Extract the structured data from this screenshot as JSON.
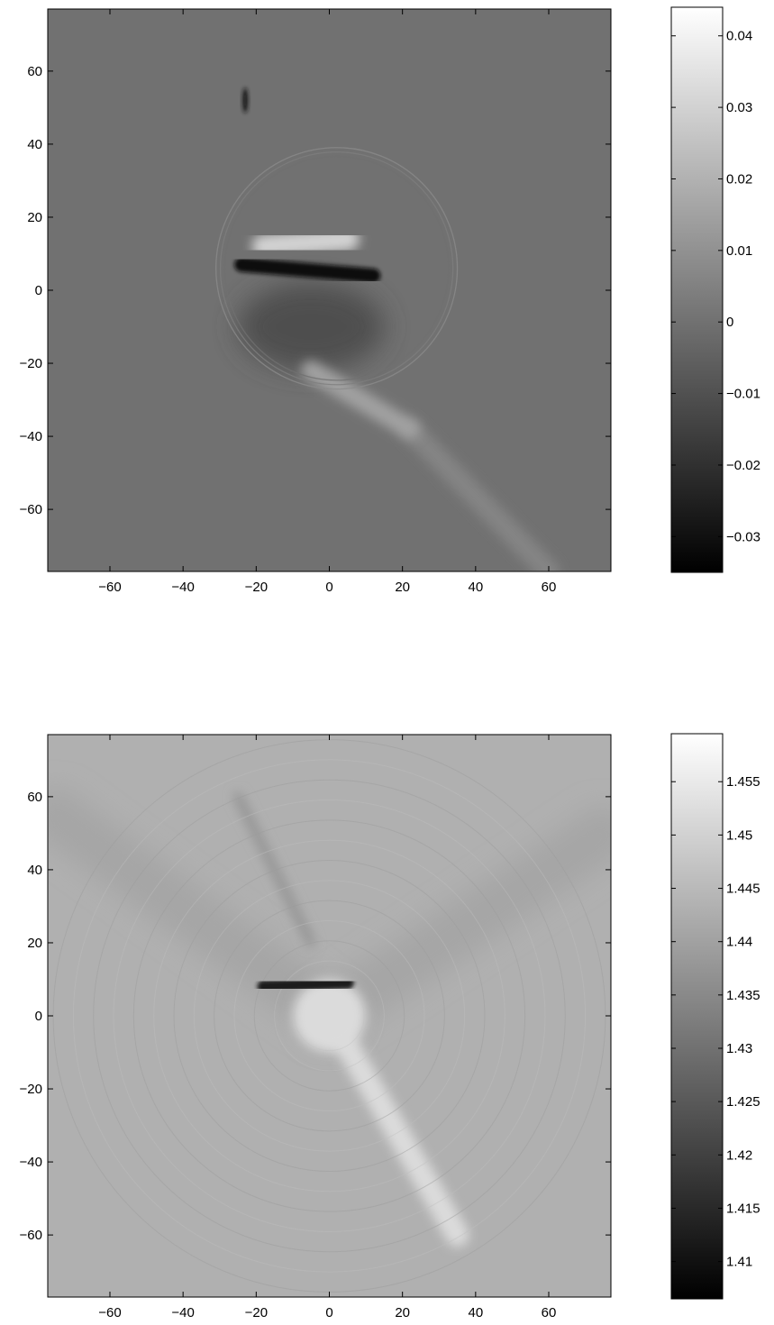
{
  "chart_data": [
    {
      "type": "heatmap",
      "title": "",
      "xlabel": "",
      "ylabel": "",
      "xlim": [
        -77,
        77
      ],
      "ylim": [
        -77,
        77
      ],
      "x_ticks": [
        -60,
        -40,
        -20,
        0,
        20,
        40,
        60
      ],
      "y_ticks": [
        -60,
        -40,
        -20,
        0,
        20,
        40,
        60
      ],
      "x_tick_labels": [
        "−60",
        "−40",
        "−20",
        "0",
        "20",
        "40",
        "60"
      ],
      "y_tick_labels": [
        "−60",
        "−40",
        "−20",
        "0",
        "20",
        "40",
        "60"
      ],
      "colormap": "gray",
      "background_value": 0,
      "colorbar": {
        "min": -0.035,
        "max": 0.044,
        "ticks": [
          -0.03,
          -0.02,
          -0.01,
          0,
          0.01,
          0.02,
          0.03,
          0.04
        ],
        "tick_labels": [
          "−0.03",
          "−0.02",
          "−0.01",
          "0",
          "0.01",
          "0.02",
          "0.03",
          "0.04"
        ]
      },
      "features": {
        "ring": {
          "cx": 2,
          "cy": 6,
          "r": 33,
          "value": 0.008
        },
        "bright_band": {
          "x1": -18,
          "y1": 12,
          "x2": 5,
          "y2": 14,
          "value": 0.03
        },
        "dark_band": {
          "x1": -24,
          "y1": 7,
          "x2": 12,
          "y2": 4,
          "value": -0.03
        },
        "dark_region": {
          "cx": -5,
          "cy": -10,
          "rx": 20,
          "ry": 12,
          "value": -0.012
        },
        "streak": {
          "x1": -5,
          "y1": -22,
          "x2": 22,
          "y2": -38,
          "value": 0.015
        },
        "tail": {
          "x1": 22,
          "y1": -38,
          "x2": 60,
          "y2": -77,
          "value": 0.006
        },
        "top_spot": {
          "x": -23,
          "y": 52,
          "value": -0.028
        }
      }
    },
    {
      "type": "heatmap",
      "title": "",
      "xlabel": "",
      "ylabel": "",
      "xlim": [
        -77,
        77
      ],
      "ylim": [
        -77,
        77
      ],
      "x_ticks": [
        -60,
        -40,
        -20,
        0,
        20,
        40,
        60
      ],
      "y_ticks": [
        -60,
        -40,
        -20,
        0,
        20,
        40,
        60
      ],
      "x_tick_labels": [
        "−60",
        "−40",
        "−20",
        "0",
        "20",
        "40",
        "60"
      ],
      "y_tick_labels": [
        "−60",
        "−40",
        "−20",
        "0",
        "20",
        "40",
        "60"
      ],
      "colormap": "gray",
      "background_value": 1.443,
      "colorbar": {
        "min": 1.4065,
        "max": 1.4595,
        "ticks": [
          1.41,
          1.415,
          1.42,
          1.425,
          1.43,
          1.435,
          1.44,
          1.445,
          1.45,
          1.455
        ],
        "tick_labels": [
          "1.41",
          "1.415",
          "1.42",
          "1.425",
          "1.43",
          "1.435",
          "1.44",
          "1.445",
          "1.45",
          "1.455"
        ]
      },
      "features": {
        "ring": {
          "cx": 0,
          "cy": 0,
          "r": 33,
          "value": 1.447
        },
        "dark_band": {
          "x1": -18,
          "y1": 8,
          "x2": 5,
          "y2": 9,
          "value": 1.412
        },
        "bright_center": {
          "cx": 0,
          "cy": 0,
          "r": 10,
          "value": 1.452
        },
        "cone_left": {
          "x1": 0,
          "y1": 0,
          "x2": -75,
          "y2": 55,
          "value": 1.441
        },
        "cone_right": {
          "x1": 0,
          "y1": 0,
          "x2": 75,
          "y2": 50,
          "value": 1.441
        },
        "streak": {
          "x1": 0,
          "y1": 0,
          "x2": 35,
          "y2": -60,
          "value": 1.452
        },
        "upper_streak": {
          "x1": -5,
          "y1": 20,
          "x2": -25,
          "y2": 60,
          "value": 1.437
        }
      }
    }
  ]
}
